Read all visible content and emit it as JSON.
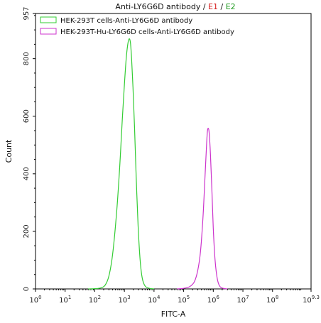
{
  "chart_data": {
    "type": "line",
    "title": {
      "main": "Anti-LY6G6D antibody",
      "sep1": " / ",
      "e1": "E1",
      "sep2": " / ",
      "e2": "E2",
      "e1_color": "#d62020",
      "e2_color": "#1f9a1f"
    },
    "xlabel": "FITC-A",
    "ylabel": "Count",
    "x_scale": "log10",
    "xlim": [
      1,
      1995262315
    ],
    "ylim": [
      0,
      957
    ],
    "x_ticks": [
      {
        "base": "10",
        "exp": "0",
        "value": 1
      },
      {
        "base": "10",
        "exp": "1",
        "value": 10
      },
      {
        "base": "10",
        "exp": "2",
        "value": 100
      },
      {
        "base": "10",
        "exp": "3",
        "value": 1000
      },
      {
        "base": "10",
        "exp": "4",
        "value": 10000
      },
      {
        "base": "10",
        "exp": "5",
        "value": 100000
      },
      {
        "base": "10",
        "exp": "6",
        "value": 1000000
      },
      {
        "base": "10",
        "exp": "7",
        "value": 10000000
      },
      {
        "base": "10",
        "exp": "8",
        "value": 100000000
      },
      {
        "base": "10",
        "exp": "9.3",
        "value": 1995262315
      }
    ],
    "y_ticks": [
      {
        "label": "0",
        "value": 0
      },
      {
        "label": "200",
        "value": 200
      },
      {
        "label": "400",
        "value": 400
      },
      {
        "label": "600",
        "value": 600
      },
      {
        "label": "800",
        "value": 800
      },
      {
        "label": "957",
        "value": 957
      }
    ],
    "legend_position": "top-left",
    "series": [
      {
        "name": "HEK-293T cells-Anti-LY6G6D antibody",
        "color": "#33cc33",
        "points": [
          [
            60,
            0
          ],
          [
            100,
            1
          ],
          [
            150,
            3
          ],
          [
            220,
            12
          ],
          [
            300,
            45
          ],
          [
            400,
            120
          ],
          [
            550,
            270
          ],
          [
            700,
            430
          ],
          [
            850,
            590
          ],
          [
            1000,
            710
          ],
          [
            1150,
            800
          ],
          [
            1300,
            850
          ],
          [
            1450,
            869
          ],
          [
            1600,
            855
          ],
          [
            1750,
            800
          ],
          [
            1950,
            700
          ],
          [
            2200,
            560
          ],
          [
            2500,
            390
          ],
          [
            2900,
            220
          ],
          [
            3400,
            100
          ],
          [
            4000,
            38
          ],
          [
            5000,
            10
          ],
          [
            7000,
            2
          ],
          [
            10000,
            0
          ]
        ]
      },
      {
        "name": "HEK-293T-Hu-LY6G6D cells-Anti-LY6G6D antibody",
        "color": "#cc33cc",
        "points": [
          [
            60000,
            0
          ],
          [
            100000,
            2
          ],
          [
            160000,
            8
          ],
          [
            230000,
            25
          ],
          [
            300000,
            65
          ],
          [
            370000,
            130
          ],
          [
            450000,
            250
          ],
          [
            520000,
            380
          ],
          [
            580000,
            480
          ],
          [
            630000,
            545
          ],
          [
            680000,
            558
          ],
          [
            730000,
            540
          ],
          [
            800000,
            470
          ],
          [
            900000,
            340
          ],
          [
            1000000,
            210
          ],
          [
            1150000,
            100
          ],
          [
            1350000,
            38
          ],
          [
            1600000,
            12
          ],
          [
            2000000,
            3
          ],
          [
            3000000,
            0
          ]
        ]
      }
    ]
  }
}
